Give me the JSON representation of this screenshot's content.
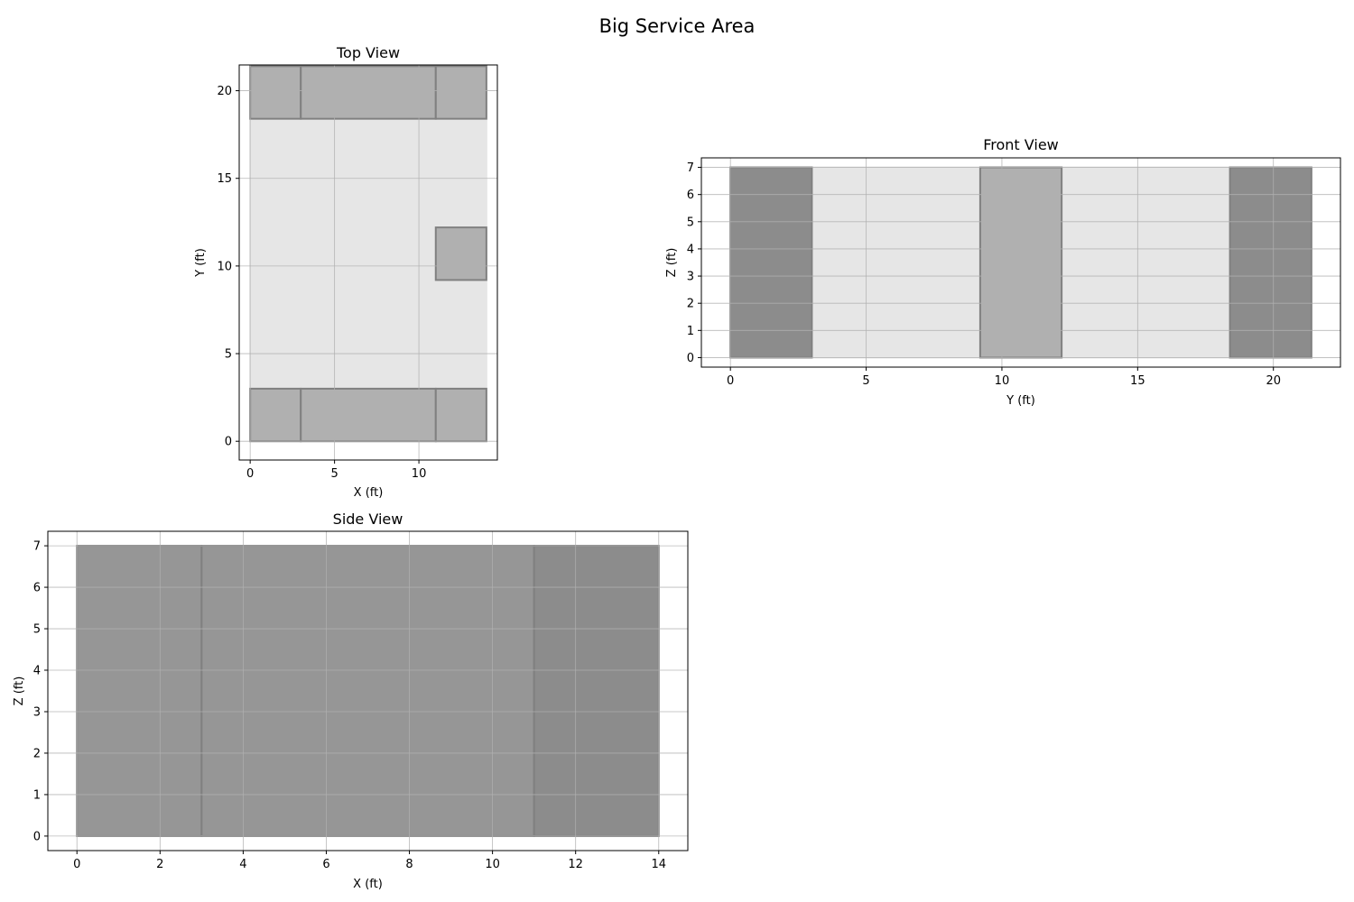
{
  "figure": {
    "title": "Big Service Area"
  },
  "colors": {
    "floor": "#e6e6e6",
    "box": "#b0b0b0",
    "box_dark": "#8c8c8c",
    "side_box": "#969696",
    "edge": "#808080",
    "grid": "#b0b0b0",
    "axes": "#000000"
  },
  "chart_data": [
    {
      "id": "top",
      "type": "rectangles",
      "title": "Top View",
      "xlabel": "X (ft)",
      "ylabel": "Y (ft)",
      "xlim": [
        -0.65,
        14.65
      ],
      "ylim": [
        -1.07,
        21.47
      ],
      "xticks": [
        0,
        5,
        10
      ],
      "yticks": [
        0,
        5,
        10,
        15,
        20
      ],
      "grid": true,
      "rects": [
        {
          "name": "floor",
          "x0": 0,
          "x1": 14,
          "y0": 0,
          "y1": 21.4,
          "fill": "floor",
          "edge": "floor",
          "opacity": 1.0
        },
        {
          "name": "back-left",
          "x0": 0,
          "x1": 3,
          "y0": 18.4,
          "y1": 21.4,
          "fill": "box",
          "edge": "edge",
          "opacity": 1.0
        },
        {
          "name": "back-middle",
          "x0": 3,
          "x1": 11,
          "y0": 18.4,
          "y1": 21.4,
          "fill": "box",
          "edge": "edge",
          "opacity": 1.0
        },
        {
          "name": "back-right",
          "x0": 11,
          "x1": 14,
          "y0": 18.4,
          "y1": 21.4,
          "fill": "box",
          "edge": "edge",
          "opacity": 1.0
        },
        {
          "name": "mid-right",
          "x0": 11,
          "x1": 14,
          "y0": 9.2,
          "y1": 12.2,
          "fill": "box",
          "edge": "edge",
          "opacity": 1.0
        },
        {
          "name": "front-left",
          "x0": 0,
          "x1": 3,
          "y0": 0,
          "y1": 3,
          "fill": "box",
          "edge": "edge",
          "opacity": 1.0
        },
        {
          "name": "front-middle",
          "x0": 3,
          "x1": 11,
          "y0": 0,
          "y1": 3,
          "fill": "box",
          "edge": "edge",
          "opacity": 1.0
        },
        {
          "name": "front-right",
          "x0": 11,
          "x1": 14,
          "y0": 0,
          "y1": 3,
          "fill": "box",
          "edge": "edge",
          "opacity": 1.0
        }
      ]
    },
    {
      "id": "front",
      "type": "rectangles",
      "title": "Front View",
      "xlabel": "Y (ft)",
      "ylabel": "Z (ft)",
      "xlim": [
        -1.07,
        22.47
      ],
      "ylim": [
        -0.35,
        7.35
      ],
      "xticks": [
        0,
        5,
        10,
        15,
        20
      ],
      "yticks": [
        0,
        1,
        2,
        3,
        4,
        5,
        6,
        7
      ],
      "grid": true,
      "rects": [
        {
          "name": "floor",
          "x0": 0,
          "x1": 21.4,
          "y0": 0,
          "y1": 7,
          "fill": "floor",
          "edge": "floor",
          "opacity": 1.0
        },
        {
          "name": "front-stack",
          "x0": 0,
          "x1": 3,
          "y0": 0,
          "y1": 7,
          "fill": "box_dark",
          "edge": "edge",
          "opacity": 1.0
        },
        {
          "name": "middle-box",
          "x0": 9.2,
          "x1": 12.2,
          "y0": 0,
          "y1": 7,
          "fill": "box",
          "edge": "edge",
          "opacity": 1.0
        },
        {
          "name": "back-stack",
          "x0": 18.4,
          "x1": 21.4,
          "y0": 0,
          "y1": 7,
          "fill": "box_dark",
          "edge": "edge",
          "opacity": 1.0
        }
      ]
    },
    {
      "id": "side",
      "type": "rectangles",
      "title": "Side View",
      "xlabel": "X (ft)",
      "ylabel": "Z (ft)",
      "xlim": [
        -0.7,
        14.7
      ],
      "ylim": [
        -0.35,
        7.35
      ],
      "xticks": [
        0,
        2,
        4,
        6,
        8,
        10,
        12,
        14
      ],
      "yticks": [
        0,
        1,
        2,
        3,
        4,
        5,
        6,
        7
      ],
      "grid": true,
      "rects": [
        {
          "name": "left-section",
          "x0": 0,
          "x1": 3,
          "y0": 0,
          "y1": 7,
          "fill": "side_box",
          "edge": "edge",
          "opacity": 1.0
        },
        {
          "name": "middle-section",
          "x0": 3,
          "x1": 11,
          "y0": 0,
          "y1": 7,
          "fill": "side_box",
          "edge": "edge",
          "opacity": 1.0
        },
        {
          "name": "right-section",
          "x0": 11,
          "x1": 14,
          "y0": 0,
          "y1": 7,
          "fill": "box_dark",
          "edge": "edge",
          "opacity": 1.0
        }
      ]
    }
  ]
}
